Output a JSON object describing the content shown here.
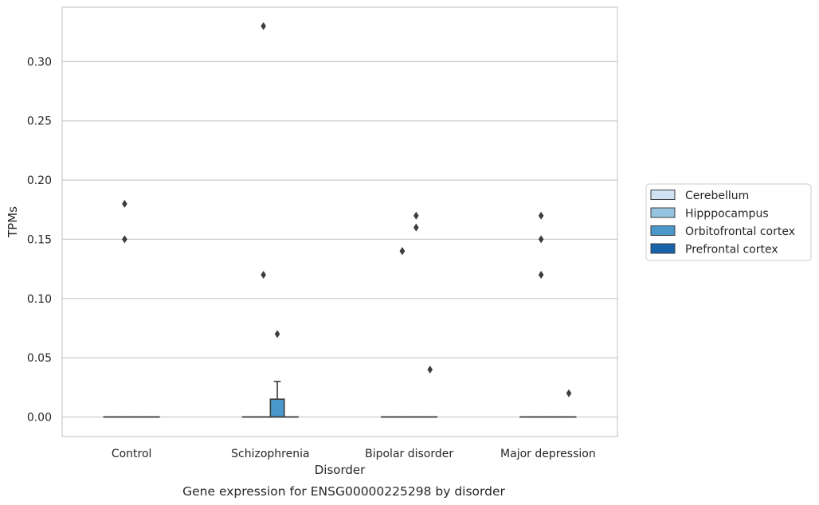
{
  "chart_data": {
    "type": "boxplot",
    "title": "",
    "caption": "Gene expression for ENSG00000225298 by disorder",
    "xlabel": "Disorder",
    "ylabel": "TPMs",
    "ylim": [
      -0.0165,
      0.346
    ],
    "yticks": [
      0.0,
      0.05,
      0.1,
      0.15,
      0.2,
      0.25,
      0.3
    ],
    "ytick_labels": [
      "0.00",
      "0.05",
      "0.10",
      "0.15",
      "0.20",
      "0.25",
      "0.30"
    ],
    "grid": "horizontal",
    "legend_position": "right",
    "categories": [
      "Control",
      "Schizophrenia",
      "Bipolar disorder",
      "Major depression"
    ],
    "series": [
      {
        "name": "Cerebellum",
        "color": "#d0e1f2",
        "boxes": [
          {
            "q1": 0,
            "median": 0,
            "q3": 0,
            "whislo": 0,
            "whishi": 0,
            "fliers": []
          },
          {
            "q1": 0,
            "median": 0,
            "q3": 0,
            "whislo": 0,
            "whishi": 0,
            "fliers": []
          },
          {
            "q1": 0,
            "median": 0,
            "q3": 0,
            "whislo": 0,
            "whishi": 0,
            "fliers": []
          },
          {
            "q1": 0,
            "median": 0,
            "q3": 0,
            "whislo": 0,
            "whishi": 0,
            "fliers": []
          }
        ]
      },
      {
        "name": "Hipppocampus",
        "color": "#94c4df",
        "boxes": [
          {
            "q1": 0,
            "median": 0,
            "q3": 0,
            "whislo": 0,
            "whishi": 0,
            "fliers": [
              0.15,
              0.18
            ]
          },
          {
            "q1": 0,
            "median": 0,
            "q3": 0,
            "whislo": 0,
            "whishi": 0,
            "fliers": [
              0.12,
              0.33
            ]
          },
          {
            "q1": 0,
            "median": 0,
            "q3": 0,
            "whislo": 0,
            "whishi": 0,
            "fliers": [
              0.14,
              0.14
            ]
          },
          {
            "q1": 0,
            "median": 0,
            "q3": 0,
            "whislo": 0,
            "whishi": 0,
            "fliers": [
              0.12,
              0.15,
              0.17
            ]
          }
        ]
      },
      {
        "name": "Orbitofrontal cortex",
        "color": "#4a98c9",
        "boxes": [
          {
            "q1": 0,
            "median": 0,
            "q3": 0,
            "whislo": 0,
            "whishi": 0,
            "fliers": []
          },
          {
            "q1": 0,
            "median": 0,
            "q3": 0.015,
            "whislo": 0,
            "whishi": 0.03,
            "fliers": [
              0.07
            ]
          },
          {
            "q1": 0,
            "median": 0,
            "q3": 0,
            "whislo": 0,
            "whishi": 0,
            "fliers": [
              0.16,
              0.17
            ]
          },
          {
            "q1": 0,
            "median": 0,
            "q3": 0,
            "whislo": 0,
            "whishi": 0,
            "fliers": []
          }
        ]
      },
      {
        "name": "Prefrontal cortex",
        "color": "#1764ab",
        "boxes": [
          {
            "q1": 0,
            "median": 0,
            "q3": 0,
            "whislo": 0,
            "whishi": 0,
            "fliers": []
          },
          {
            "q1": 0,
            "median": 0,
            "q3": 0,
            "whislo": 0,
            "whishi": 0,
            "fliers": []
          },
          {
            "q1": 0,
            "median": 0,
            "q3": 0,
            "whislo": 0,
            "whishi": 0,
            "fliers": [
              0.04
            ]
          },
          {
            "q1": 0,
            "median": 0,
            "q3": 0,
            "whislo": 0,
            "whishi": 0,
            "fliers": [
              0.02
            ]
          }
        ]
      }
    ]
  }
}
